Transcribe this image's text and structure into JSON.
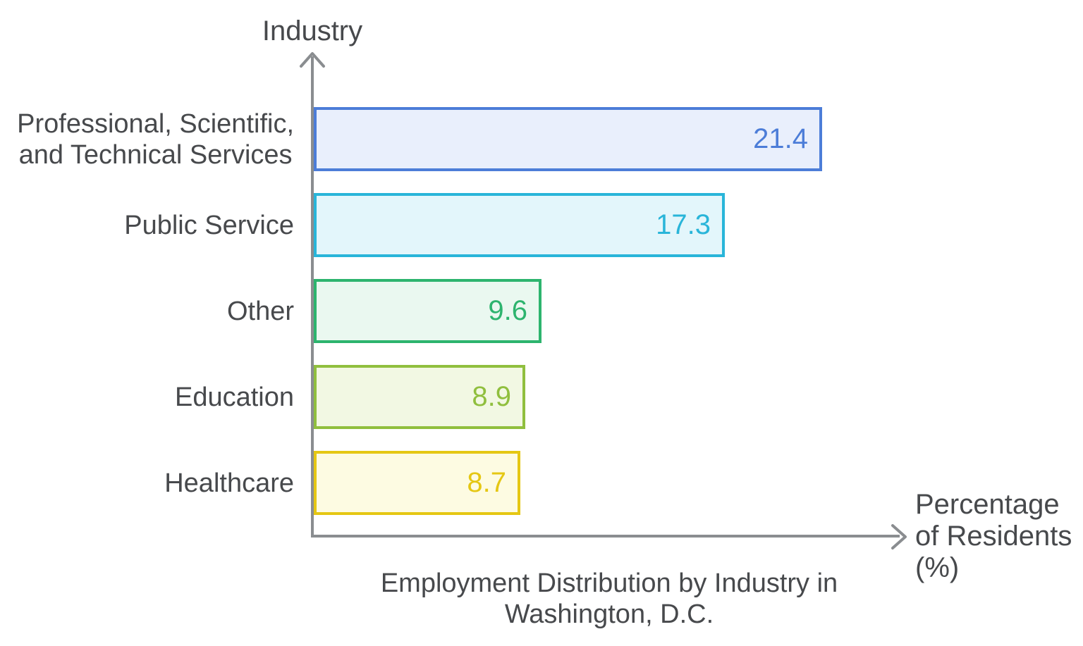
{
  "chart_data": {
    "type": "bar",
    "orientation": "horizontal",
    "title": "Employment Distribution by Industry in Washington, D.C.",
    "title_lines": [
      "Employment Distribution by Industry in",
      "Washington, D.C."
    ],
    "xlabel": "Percentage of Residents (%)",
    "xlabel_lines": [
      "Percentage",
      "of Residents",
      "(%)"
    ],
    "ylabel": "Industry",
    "categories": [
      "Professional, Scientific, and Technical Services",
      "Public Service",
      "Other",
      "Education",
      "Healthcare"
    ],
    "category_lines": [
      [
        "Professional, Scientific,",
        "and Technical Services"
      ],
      [
        "Public Service"
      ],
      [
        "Other"
      ],
      [
        "Education"
      ],
      [
        "Healthcare"
      ]
    ],
    "values": [
      21.4,
      17.3,
      9.6,
      8.9,
      8.7
    ],
    "value_labels": [
      "21.4",
      "17.3",
      "9.6",
      "8.9",
      "8.7"
    ],
    "xlim": [
      0,
      25
    ],
    "grid": false,
    "legend": "none",
    "colors": {
      "axis": "#8a8d90",
      "text": "#47494c",
      "bar_styles": [
        {
          "stroke": "#4c7dd8",
          "fill": "#e9effc"
        },
        {
          "stroke": "#29b5d9",
          "fill": "#e3f6fb"
        },
        {
          "stroke": "#2db46e",
          "fill": "#eaf8f0"
        },
        {
          "stroke": "#90bf3e",
          "fill": "#f2f8e3"
        },
        {
          "stroke": "#e5c713",
          "fill": "#fdfbe2"
        }
      ]
    }
  }
}
